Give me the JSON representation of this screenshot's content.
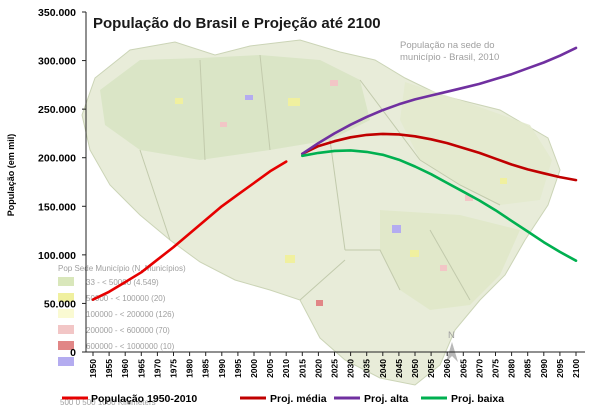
{
  "chart_data": {
    "type": "line",
    "title": "População do Brasil e Projeção até 2100",
    "xlabel": "",
    "ylabel": "População (em mil)",
    "ylim": [
      0,
      350000
    ],
    "yticks": [
      "0",
      "50.000",
      "100.000",
      "150.000",
      "200.000",
      "250.000",
      "300.000",
      "350.000"
    ],
    "ytick_values": [
      0,
      50000,
      100000,
      150000,
      200000,
      250000,
      300000,
      350000
    ],
    "x_categories": [
      "1950",
      "1955",
      "1960",
      "1965",
      "1970",
      "1975",
      "1980",
      "1985",
      "1990",
      "1995",
      "2000",
      "2005",
      "2010",
      "2015",
      "2020",
      "2025",
      "2030",
      "2035",
      "2040",
      "2045",
      "2050",
      "2055",
      "2060",
      "2065",
      "2070",
      "2075",
      "2080",
      "2085",
      "2090",
      "2095",
      "2100"
    ],
    "legend_position": "bottom",
    "grid": false,
    "series": [
      {
        "name": "População 1950-2010",
        "color": "#e60000",
        "x": [
          1950,
          1955,
          1960,
          1965,
          1970,
          1975,
          1980,
          1985,
          1990,
          1995,
          2000,
          2005,
          2010
        ],
        "values": [
          53975,
          62000,
          72000,
          82000,
          95000,
          108000,
          122000,
          136000,
          150000,
          162000,
          174000,
          186000,
          196000
        ]
      },
      {
        "name": "Proj. média",
        "color": "#c00000",
        "x": [
          2015,
          2020,
          2025,
          2030,
          2035,
          2040,
          2045,
          2050,
          2055,
          2060,
          2065,
          2070,
          2075,
          2080,
          2085,
          2090,
          2095,
          2100
        ],
        "values": [
          204000,
          212000,
          217000,
          221000,
          223500,
          224500,
          224000,
          222000,
          219000,
          215000,
          210000,
          205000,
          199000,
          193000,
          188000,
          184000,
          180000,
          177000
        ]
      },
      {
        "name": "Proj. alta",
        "color": "#7030a0",
        "x": [
          2015,
          2020,
          2025,
          2030,
          2035,
          2040,
          2045,
          2050,
          2055,
          2060,
          2065,
          2070,
          2075,
          2080,
          2085,
          2090,
          2095,
          2100
        ],
        "values": [
          204000,
          215000,
          225000,
          234000,
          242000,
          249000,
          255000,
          260000,
          264000,
          268000,
          272000,
          276000,
          281000,
          286000,
          292000,
          298000,
          305000,
          313000
        ]
      },
      {
        "name": "Proj. baixa",
        "color": "#00b050",
        "x": [
          2015,
          2020,
          2025,
          2030,
          2035,
          2040,
          2045,
          2050,
          2055,
          2060,
          2065,
          2070,
          2075,
          2080,
          2085,
          2090,
          2095,
          2100
        ],
        "values": [
          202000,
          205000,
          207000,
          207500,
          206000,
          203000,
          198000,
          191000,
          183000,
          174000,
          165000,
          156000,
          146000,
          135000,
          124000,
          113000,
          103000,
          94000
        ]
      }
    ]
  },
  "background_map": {
    "title_lines": [
      "População na sede do",
      "município - Brasil, 2010"
    ],
    "legend_title": "Pop Sede Município   (N. Municípios)",
    "legend_rows": [
      {
        "label": "33 - < 50000   (4.549)",
        "color": "#d8e6b8"
      },
      {
        "label": "50000 - < 100000   (20)",
        "color": "#f0f09a"
      },
      {
        "label": "100000 - < 200000   (126)",
        "color": "#fafad0"
      },
      {
        "label": "200000 - < 600000   (70)",
        "color": "#f2c4c4"
      },
      {
        "label": "600000 - < 1000000   (10)",
        "color": "#e08080"
      },
      {
        "label": "",
        "color": "#b0a8f0"
      }
    ],
    "scale_label": "500   0   500   1000   Kilometers",
    "north_label": "N",
    "colors": {
      "land": "#e7ecd8",
      "region": "#d6e2bf",
      "border": "#bfc8a8"
    }
  }
}
